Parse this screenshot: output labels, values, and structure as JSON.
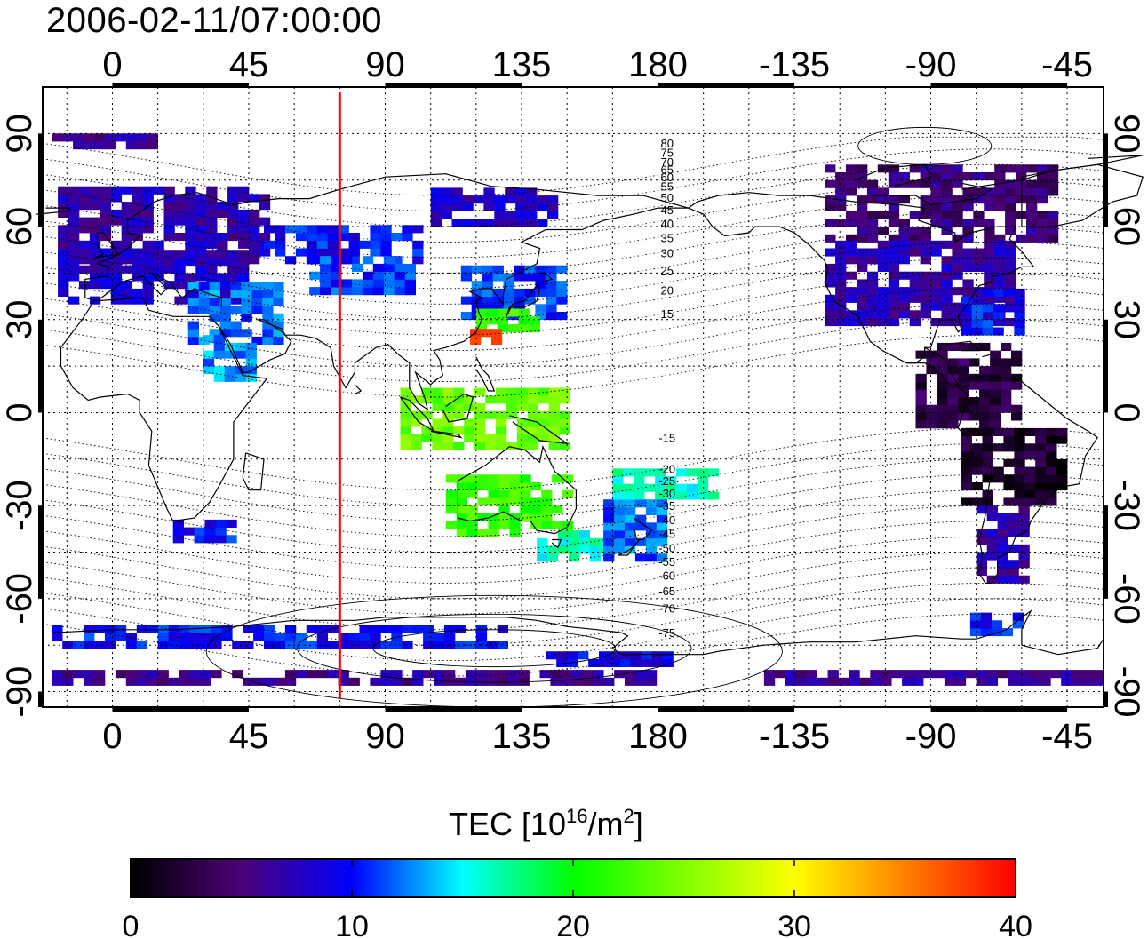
{
  "title": "2006-02-11/07:00:00",
  "map": {
    "lon_range": [
      -23,
      327
    ],
    "lat_range": [
      -95,
      105
    ],
    "lon_tick_labels_top": [
      "0",
      "45",
      "90",
      "135",
      "180",
      "-135",
      "-90",
      "-45"
    ],
    "lon_tick_labels_bottom": [
      "0",
      "45",
      "90",
      "135",
      "180",
      "-135",
      "-90",
      "-45"
    ],
    "lat_tick_labels_left": [
      "90",
      "60",
      "30",
      "0",
      "-30",
      "-60",
      "-90"
    ],
    "lat_tick_labels_right": [
      "90",
      "60",
      "30",
      "0",
      "-30",
      "-60",
      "-90"
    ],
    "grid": "dotted",
    "marker_line": {
      "longitude": 75,
      "color": "#ff0000"
    },
    "contour_labels_north": [
      "80",
      "75",
      "70",
      "65",
      "60",
      "55",
      "50",
      "45",
      "40",
      "35",
      "30",
      "25",
      "20",
      "15"
    ],
    "contour_labels_south": [
      "-15",
      "-20",
      "-25",
      "-30",
      "-35",
      "-40",
      "-45",
      "-50",
      "-55",
      "-60",
      "-65",
      "-70",
      "-75"
    ],
    "tec_regions": [
      {
        "lon0": -20,
        "lon1": 15,
        "lat0": 85,
        "lat1": 90,
        "tec": 6
      },
      {
        "lon0": -18,
        "lon1": 50,
        "lat0": 48,
        "lat1": 72,
        "tec": 7
      },
      {
        "lon0": -18,
        "lon1": 45,
        "lat0": 35,
        "lat1": 52,
        "tec": 8
      },
      {
        "lon0": 25,
        "lon1": 55,
        "lat0": 22,
        "lat1": 40,
        "tec": 12
      },
      {
        "lon0": 30,
        "lon1": 45,
        "lat0": 10,
        "lat1": 25,
        "tec": 13
      },
      {
        "lon0": 50,
        "lon1": 100,
        "lat0": 48,
        "lat1": 60,
        "tec": 10
      },
      {
        "lon0": 65,
        "lon1": 100,
        "lat0": 38,
        "lat1": 50,
        "tec": 11
      },
      {
        "lon0": 115,
        "lon1": 150,
        "lat0": 30,
        "lat1": 46,
        "tec": 11
      },
      {
        "lon0": 120,
        "lon1": 140,
        "lat0": 26,
        "lat1": 32,
        "tec": 22
      },
      {
        "lon0": 118,
        "lon1": 126,
        "lat0": 22,
        "lat1": 26,
        "tec": 36
      },
      {
        "lon0": 105,
        "lon1": 145,
        "lat0": 60,
        "lat1": 72,
        "tec": 8
      },
      {
        "lon0": 110,
        "lon1": 150,
        "lat0": -40,
        "lat1": -22,
        "tec": 22
      },
      {
        "lon0": 140,
        "lon1": 162,
        "lat0": -48,
        "lat1": -38,
        "tec": 16
      },
      {
        "lon0": 162,
        "lon1": 182,
        "lat0": -48,
        "lat1": -30,
        "tec": 12
      },
      {
        "lon0": 165,
        "lon1": 200,
        "lat0": -28,
        "lat1": -18,
        "tec": 16
      },
      {
        "lon0": 95,
        "lon1": 150,
        "lat0": -12,
        "lat1": 8,
        "tec": 24
      },
      {
        "lon0": 235,
        "lon1": 310,
        "lat0": 55,
        "lat1": 80,
        "tec": 5
      },
      {
        "lon0": 235,
        "lon1": 295,
        "lat0": 28,
        "lat1": 55,
        "tec": 7
      },
      {
        "lon0": 280,
        "lon1": 300,
        "lat0": 25,
        "lat1": 40,
        "tec": 10
      },
      {
        "lon0": 265,
        "lon1": 300,
        "lat0": -5,
        "lat1": 22,
        "tec": 3
      },
      {
        "lon0": 280,
        "lon1": 315,
        "lat0": -30,
        "lat1": -5,
        "tec": 2
      },
      {
        "lon0": 285,
        "lon1": 300,
        "lat0": -55,
        "lat1": -30,
        "tec": 7
      },
      {
        "lon0": -20,
        "lon1": 180,
        "lat0": -88,
        "lat1": -84,
        "tec": 6
      },
      {
        "lon0": 215,
        "lon1": 325,
        "lat0": -88,
        "lat1": -84,
        "tec": 6
      },
      {
        "lon0": 143,
        "lon1": 185,
        "lat0": -82,
        "lat1": -77,
        "tec": 9
      },
      {
        "lon0": -20,
        "lon1": 130,
        "lat0": -76,
        "lat1": -70,
        "tec": 10
      },
      {
        "lon0": 283,
        "lon1": 300,
        "lat0": -72,
        "lat1": -65,
        "tec": 10
      },
      {
        "lon0": 20,
        "lon1": 40,
        "lat0": -42,
        "lat1": -35,
        "tec": 10
      }
    ]
  },
  "colorbar": {
    "title_main": "TEC  [10",
    "title_exp1": "16",
    "title_mid": "/m",
    "title_exp2": "2",
    "title_end": "]",
    "range": [
      0,
      40
    ],
    "tick_labels": [
      "0",
      "10",
      "20",
      "30",
      "40"
    ],
    "colormap": [
      {
        "v": 0,
        "color": "#000000"
      },
      {
        "v": 5,
        "color": "#4b0078"
      },
      {
        "v": 10,
        "color": "#0000ff"
      },
      {
        "v": 15,
        "color": "#00ffff"
      },
      {
        "v": 20,
        "color": "#00ff00"
      },
      {
        "v": 25,
        "color": "#80ff00"
      },
      {
        "v": 30,
        "color": "#ffff00"
      },
      {
        "v": 35,
        "color": "#ff8000"
      },
      {
        "v": 40,
        "color": "#ff0000"
      }
    ]
  }
}
